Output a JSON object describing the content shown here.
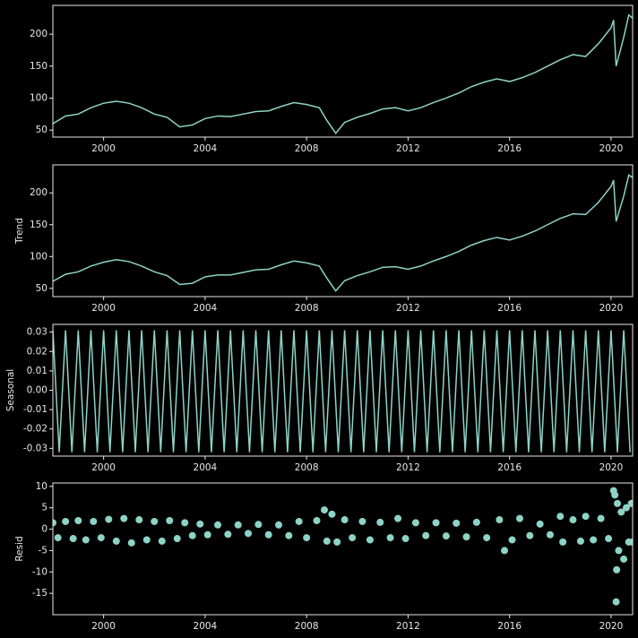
{
  "chart_data": [
    {
      "type": "line",
      "color": "#8dd3c7",
      "x": [
        1998.0,
        1998.5,
        1999.0,
        1999.5,
        2000.0,
        2000.5,
        2001.0,
        2001.5,
        2002.0,
        2002.5,
        2003.0,
        2003.5,
        2004.0,
        2004.5,
        2005.0,
        2005.5,
        2006.0,
        2006.5,
        2007.0,
        2007.5,
        2008.0,
        2008.5,
        2008.8,
        2009.15,
        2009.5,
        2010.0,
        2010.5,
        2011.0,
        2011.5,
        2012.0,
        2012.5,
        2013.0,
        2013.5,
        2014.0,
        2014.5,
        2015.0,
        2015.5,
        2016.0,
        2016.5,
        2017.0,
        2017.5,
        2018.0,
        2018.5,
        2019.0,
        2019.5,
        2020.0,
        2020.1,
        2020.2,
        2020.5,
        2020.7,
        2020.85
      ],
      "values": [
        60,
        72,
        75,
        85,
        92,
        95,
        92,
        85,
        75,
        70,
        55,
        58,
        68,
        72,
        71,
        75,
        79,
        80,
        87,
        93,
        90,
        85,
        65,
        45,
        62,
        70,
        76,
        83,
        85,
        80,
        85,
        93,
        100,
        108,
        118,
        125,
        130,
        126,
        132,
        140,
        150,
        160,
        168,
        165,
        185,
        210,
        222,
        150,
        195,
        230,
        225
      ],
      "xlim": [
        1998.0,
        2020.85
      ],
      "xticks": [
        2000,
        2004,
        2008,
        2012,
        2016,
        2020
      ],
      "ylim": [
        39,
        245
      ],
      "yticks": [
        50,
        100,
        150,
        200
      ]
    },
    {
      "type": "line",
      "ylabel": "Trend",
      "color": "#8dd3c7",
      "x": [
        1998.0,
        1998.5,
        1999.0,
        1999.5,
        2000.0,
        2000.5,
        2001.0,
        2001.5,
        2002.0,
        2002.5,
        2003.0,
        2003.5,
        2004.0,
        2004.5,
        2005.0,
        2005.5,
        2006.0,
        2006.5,
        2007.0,
        2007.5,
        2008.0,
        2008.5,
        2008.8,
        2009.15,
        2009.5,
        2010.0,
        2010.5,
        2011.0,
        2011.5,
        2012.0,
        2012.5,
        2013.0,
        2013.5,
        2014.0,
        2014.5,
        2015.0,
        2015.5,
        2016.0,
        2016.5,
        2017.0,
        2017.5,
        2018.0,
        2018.5,
        2019.0,
        2019.5,
        2020.0,
        2020.1,
        2020.2,
        2020.5,
        2020.7,
        2020.85
      ],
      "values": [
        61,
        72,
        76,
        85,
        91,
        95,
        92,
        85,
        76,
        70,
        56,
        58,
        68,
        71,
        71,
        75,
        79,
        80,
        87,
        93,
        90,
        85,
        66,
        46,
        62,
        70,
        76,
        83,
        84,
        80,
        85,
        93,
        100,
        108,
        118,
        125,
        130,
        126,
        132,
        140,
        150,
        160,
        167,
        166,
        185,
        210,
        220,
        155,
        195,
        228,
        224
      ],
      "xlim": [
        1998.0,
        2020.85
      ],
      "xticks": [
        2000,
        2004,
        2008,
        2012,
        2016,
        2020
      ],
      "ylim": [
        37,
        244
      ],
      "yticks": [
        50,
        100,
        150,
        200
      ]
    },
    {
      "type": "line",
      "ylabel": "Seasonal",
      "color": "#8dd3c7",
      "x": [
        1998.0,
        1998.25,
        1998.5,
        1998.75,
        1999.0,
        1999.25,
        1999.5,
        1999.75,
        2000.0,
        2000.25,
        2000.5,
        2000.75,
        2001.0,
        2001.25,
        2001.5,
        2001.75,
        2002.0,
        2002.25,
        2002.5,
        2002.75,
        2003.0,
        2003.25,
        2003.5,
        2003.75,
        2004.0,
        2004.25,
        2004.5,
        2004.75,
        2005.0,
        2005.25,
        2005.5,
        2005.75,
        2006.0,
        2006.25,
        2006.5,
        2006.75,
        2007.0,
        2007.25,
        2007.5,
        2007.75,
        2008.0,
        2008.25,
        2008.5,
        2008.75,
        2009.0,
        2009.25,
        2009.5,
        2009.75,
        2010.0,
        2010.25,
        2010.5,
        2010.75,
        2011.0,
        2011.25,
        2011.5,
        2011.75,
        2012.0,
        2012.25,
        2012.5,
        2012.75,
        2013.0,
        2013.25,
        2013.5,
        2013.75,
        2014.0,
        2014.25,
        2014.5,
        2014.75,
        2015.0,
        2015.25,
        2015.5,
        2015.75,
        2016.0,
        2016.25,
        2016.5,
        2016.75,
        2017.0,
        2017.25,
        2017.5,
        2017.75,
        2018.0,
        2018.25,
        2018.5,
        2018.75,
        2019.0,
        2019.25,
        2019.5,
        2019.75,
        2020.0,
        2020.25,
        2020.5,
        2020.75
      ],
      "values": [
        0.031,
        -0.032,
        0.031,
        -0.032,
        0.031,
        -0.032,
        0.031,
        -0.032,
        0.031,
        -0.032,
        0.031,
        -0.032,
        0.031,
        -0.032,
        0.031,
        -0.032,
        0.031,
        -0.032,
        0.031,
        -0.032,
        0.031,
        -0.032,
        0.031,
        -0.032,
        0.031,
        -0.032,
        0.031,
        -0.032,
        0.031,
        -0.032,
        0.031,
        -0.032,
        0.031,
        -0.032,
        0.031,
        -0.032,
        0.031,
        -0.032,
        0.031,
        -0.032,
        0.031,
        -0.032,
        0.031,
        -0.032,
        0.031,
        -0.032,
        0.031,
        -0.032,
        0.031,
        -0.032,
        0.031,
        -0.032,
        0.031,
        -0.032,
        0.031,
        -0.032,
        0.031,
        -0.032,
        0.031,
        -0.032,
        0.031,
        -0.032,
        0.031,
        -0.032,
        0.031,
        -0.032,
        0.031,
        -0.032,
        0.031,
        -0.032,
        0.031,
        -0.032,
        0.031,
        -0.032,
        0.031,
        -0.032,
        0.031,
        -0.032,
        0.031,
        -0.032,
        0.031,
        -0.032,
        0.031,
        -0.032,
        0.031,
        -0.032,
        0.031,
        -0.032,
        0.031,
        -0.032,
        0.031,
        -0.032
      ],
      "xlim": [
        1998.0,
        2020.85
      ],
      "xticks": [
        2000,
        2004,
        2008,
        2012,
        2016,
        2020
      ],
      "ylim": [
        -0.034,
        0.034
      ],
      "yticks": [
        -0.03,
        -0.02,
        -0.01,
        {
          "value": 0,
          "label": "0.00"
        },
        0.01,
        0.02,
        0.03
      ]
    },
    {
      "type": "scatter",
      "ylabel": "Resid",
      "color": "#8dd3c7",
      "x": [
        1998.0,
        1998.2,
        1998.5,
        1998.8,
        1999.0,
        1999.3,
        1999.6,
        1999.9,
        2000.2,
        2000.5,
        2000.8,
        2001.1,
        2001.4,
        2001.7,
        2002.0,
        2002.3,
        2002.6,
        2002.9,
        2003.2,
        2003.5,
        2003.8,
        2004.1,
        2004.5,
        2004.9,
        2005.3,
        2005.7,
        2006.1,
        2006.5,
        2006.9,
        2007.3,
        2007.7,
        2008.0,
        2008.4,
        2008.7,
        2008.8,
        2009.0,
        2009.2,
        2009.5,
        2009.8,
        2010.2,
        2010.5,
        2010.9,
        2011.3,
        2011.6,
        2011.9,
        2012.3,
        2012.7,
        2013.1,
        2013.5,
        2013.9,
        2014.3,
        2014.7,
        2015.1,
        2015.6,
        2015.8,
        2016.1,
        2016.4,
        2016.8,
        2017.2,
        2017.6,
        2018.0,
        2018.1,
        2018.5,
        2018.8,
        2019.0,
        2019.3,
        2019.6,
        2019.9,
        2020.1,
        2020.15,
        2020.2,
        2020.22,
        2020.25,
        2020.3,
        2020.4,
        2020.5,
        2020.6,
        2020.7,
        2020.8,
        2020.85
      ],
      "values": [
        1.5,
        -2,
        1.8,
        -2.2,
        2,
        -2.5,
        1.8,
        -2,
        2.3,
        -2.8,
        2.5,
        -3.2,
        2.2,
        -2.5,
        1.8,
        -2.8,
        2,
        -2.2,
        1.5,
        -1.5,
        1.2,
        -1.3,
        1,
        -1.2,
        1,
        -1,
        1.1,
        -1.3,
        1,
        -1.5,
        1.8,
        -2,
        2,
        4.5,
        -2.8,
        3.5,
        -3,
        2.2,
        -2,
        1.8,
        -2.5,
        1.6,
        -2,
        2.5,
        -2.2,
        1.5,
        -1.5,
        1.5,
        -1.6,
        1.4,
        -1.8,
        1.6,
        -2,
        2.2,
        -5,
        -2.5,
        2.5,
        -1.5,
        1.2,
        -1.3,
        3,
        -3,
        2.2,
        -2.8,
        3,
        -2.5,
        2.5,
        -2.2,
        9,
        8,
        -17,
        -9.5,
        6,
        -5,
        4,
        -7,
        5,
        -3,
        6,
        -3
      ],
      "xlim": [
        1998.0,
        2020.85
      ],
      "xticks": [
        2000,
        2004,
        2008,
        2012,
        2016,
        2020
      ],
      "ylim": [
        -20,
        10.8
      ],
      "yticks": [
        -15,
        -10,
        -5,
        0,
        5,
        10
      ]
    }
  ]
}
